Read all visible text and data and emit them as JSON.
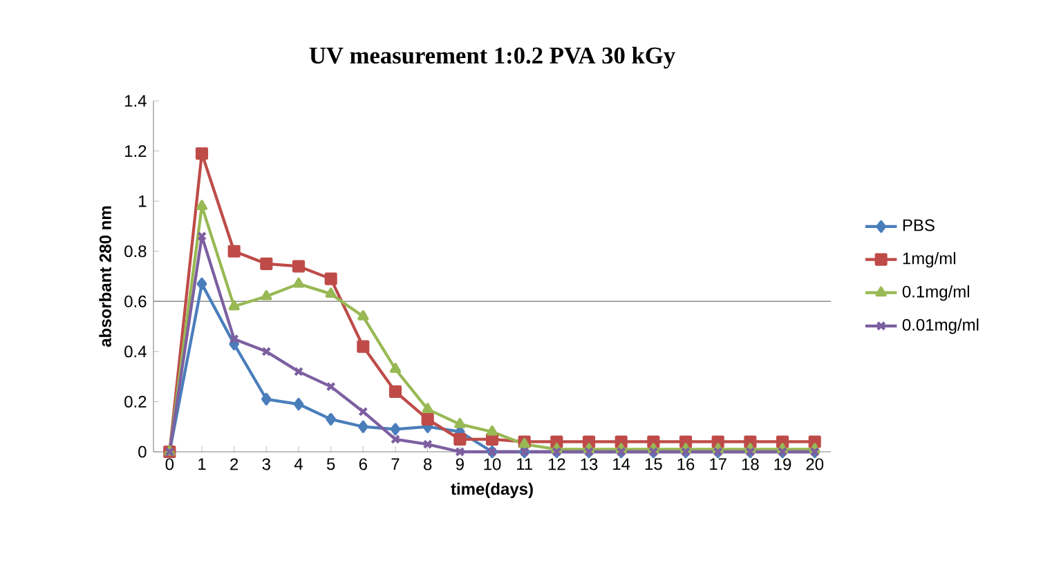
{
  "chart_data": {
    "type": "line",
    "title": "UV measurement 1:0.2 PVA 30 kGy",
    "xlabel": "time(days)",
    "ylabel": "absorbant 280 nm",
    "categories": [
      "0",
      "1",
      "2",
      "3",
      "4",
      "5",
      "6",
      "7",
      "8",
      "9",
      "10",
      "11",
      "12",
      "13",
      "14",
      "15",
      "16",
      "17",
      "18",
      "19",
      "20"
    ],
    "series": [
      {
        "name": "PBS",
        "color": "#4a7ebb",
        "marker": "diamond",
        "values": [
          0,
          0.67,
          0.43,
          0.21,
          0.19,
          0.13,
          0.1,
          0.09,
          0.1,
          0.08,
          0,
          0,
          0,
          0,
          0,
          0,
          0,
          0,
          0,
          0,
          0
        ]
      },
      {
        "name": "1mg/ml",
        "color": "#be4b48",
        "marker": "square",
        "values": [
          0,
          1.19,
          0.8,
          0.75,
          0.74,
          0.69,
          0.42,
          0.24,
          0.13,
          0.05,
          0.05,
          0.04,
          0.04,
          0.04,
          0.04,
          0.04,
          0.04,
          0.04,
          0.04,
          0.04,
          0.04
        ]
      },
      {
        "name": "0.1mg/ml",
        "color": "#98b954",
        "marker": "triangle",
        "values": [
          0,
          0.98,
          0.58,
          0.62,
          0.67,
          0.63,
          0.54,
          0.33,
          0.17,
          0.11,
          0.08,
          0.03,
          0.01,
          0.01,
          0.01,
          0.01,
          0.01,
          0.01,
          0.01,
          0.01,
          0.01
        ]
      },
      {
        "name": "0.01mg/ml",
        "color": "#7d5fa0",
        "marker": "cross",
        "values": [
          0,
          0.86,
          0.45,
          0.4,
          0.32,
          0.26,
          0.16,
          0.05,
          0.03,
          0,
          0,
          0,
          0,
          0,
          0,
          0,
          0,
          0,
          0,
          0,
          0
        ]
      }
    ],
    "ylim": [
      0,
      1.4
    ],
    "yticks": [
      0,
      0.2,
      0.4,
      0.6,
      0.8,
      1,
      1.2,
      1.4
    ],
    "ref_lines": [
      {
        "axis": "y",
        "value": 0.6,
        "color": "#8c8c8c"
      }
    ],
    "legend": "right"
  }
}
